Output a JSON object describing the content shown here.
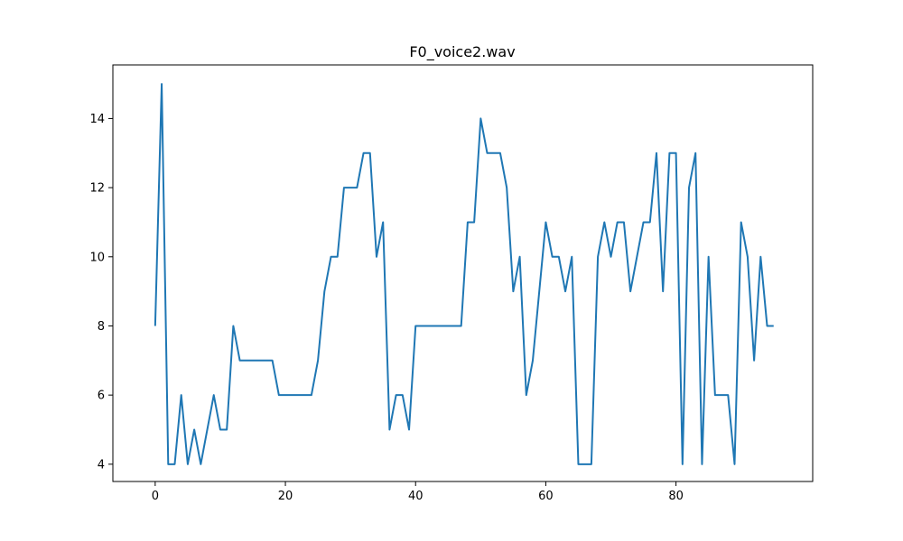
{
  "chart_data": {
    "type": "line",
    "title": "F0_voice2.wav",
    "xlabel": "",
    "ylabel": "",
    "xlim": [
      -6.5,
      101
    ],
    "ylim": [
      3.5,
      15.55
    ],
    "xticks": [
      0,
      20,
      40,
      60,
      80
    ],
    "yticks": [
      4,
      6,
      8,
      10,
      12,
      14
    ],
    "grid": false,
    "series": [
      {
        "color": "#1f77b4",
        "x": [
          0,
          1,
          2,
          3,
          4,
          5,
          6,
          7,
          8,
          9,
          10,
          11,
          12,
          13,
          14,
          15,
          16,
          17,
          18,
          19,
          20,
          21,
          22,
          23,
          24,
          25,
          26,
          27,
          28,
          29,
          30,
          31,
          32,
          33,
          34,
          35,
          36,
          37,
          38,
          39,
          40,
          41,
          42,
          43,
          44,
          45,
          46,
          47,
          48,
          49,
          50,
          51,
          52,
          53,
          54,
          55,
          56,
          57,
          58,
          59,
          60,
          61,
          62,
          63,
          64,
          65,
          66,
          67,
          68,
          69,
          70,
          71,
          72,
          73,
          74,
          75,
          76,
          77,
          78,
          79,
          80,
          81,
          82,
          83,
          84,
          85,
          86,
          87,
          88,
          89,
          90,
          91,
          92,
          93,
          94,
          95
        ],
        "y": [
          8,
          15,
          4,
          4,
          6,
          4,
          5,
          4,
          5,
          6,
          5,
          5,
          8,
          7,
          7,
          7,
          7,
          7,
          7,
          6,
          6,
          6,
          6,
          6,
          6,
          7,
          9,
          10,
          10,
          12,
          12,
          12,
          13,
          13,
          10,
          11,
          5,
          6,
          6,
          5,
          8,
          8,
          8,
          8,
          8,
          8,
          8,
          8,
          11,
          11,
          14,
          13,
          13,
          13,
          12,
          9,
          10,
          6,
          7,
          9,
          11,
          10,
          10,
          9,
          10,
          4,
          4,
          4,
          10,
          11,
          10,
          11,
          11,
          9,
          10,
          11,
          11,
          13,
          9,
          13,
          13,
          4,
          12,
          13,
          4,
          10,
          6,
          6,
          6,
          4,
          11,
          10,
          7,
          10,
          8,
          8
        ]
      }
    ]
  }
}
